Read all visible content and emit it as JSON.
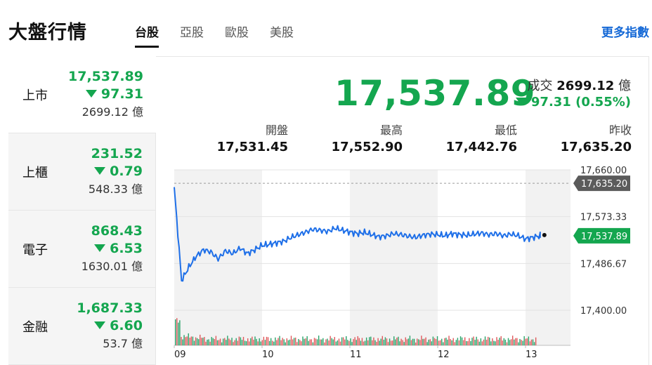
{
  "header": {
    "title": "大盤行情",
    "tabs": [
      {
        "label": "台股",
        "active": true
      },
      {
        "label": "亞股",
        "active": false
      },
      {
        "label": "歐股",
        "active": false
      },
      {
        "label": "美股",
        "active": false
      }
    ],
    "more_link": "更多指數"
  },
  "sidebar": {
    "items": [
      {
        "name": "上市",
        "value": "17,537.89",
        "change": "97.31",
        "volume": "2699.12 億",
        "active": true
      },
      {
        "name": "上櫃",
        "value": "231.52",
        "change": "0.79",
        "volume": "548.33 億",
        "active": false
      },
      {
        "name": "電子",
        "value": "868.43",
        "change": "6.53",
        "volume": "1630.01 億",
        "active": false
      },
      {
        "name": "金融",
        "value": "1,687.33",
        "change": "6.60",
        "volume": "53.7 億",
        "active": false
      }
    ]
  },
  "quote": {
    "price": "17,537.89",
    "turnover_label": "成交",
    "turnover_value": "2699.12",
    "turnover_unit": "億",
    "change": "97.31 (0.55%)",
    "direction": "down"
  },
  "stats": [
    {
      "label": "開盤",
      "value": "17,531.45"
    },
    {
      "label": "最高",
      "value": "17,552.90"
    },
    {
      "label": "最低",
      "value": "17,442.76"
    },
    {
      "label": "昨收",
      "value": "17,635.20"
    }
  ],
  "colors": {
    "down": "#14a64f",
    "line": "#1e6fe8",
    "prev_close_tag": "#5b5b5b",
    "link": "#1468d6",
    "session_shade": "#f2f2f2",
    "vol_up": "#e0585b",
    "vol_down": "#2aa36a"
  },
  "chart_data": {
    "type": "line",
    "x_ticks": [
      "09",
      "10",
      "11",
      "12",
      "13"
    ],
    "y_ticks": [
      "17,660.00",
      "17,573.33",
      "17,486.67",
      "17,400.00"
    ],
    "y_tick_values": [
      17660,
      17573.33,
      17486.67,
      17400
    ],
    "ylim": [
      17400,
      17660
    ],
    "prev_close": 17635.2,
    "prev_close_label": "17,635.20",
    "last_price": 17537.89,
    "last_label": "17,537.89",
    "series": [
      {
        "x": [
          "09:00",
          "09:05",
          "09:10",
          "09:15",
          "09:20",
          "09:25",
          "09:30",
          "09:35",
          "09:40",
          "09:45",
          "09:50",
          "09:55",
          "10:00",
          "10:05",
          "10:10",
          "10:15",
          "10:20",
          "10:25",
          "10:30",
          "10:35",
          "10:40",
          "10:45",
          "10:50",
          "10:55",
          "11:00",
          "11:05",
          "11:10",
          "11:15",
          "11:20",
          "11:25",
          "11:30",
          "11:35",
          "11:40",
          "11:45",
          "11:50",
          "11:55",
          "12:00",
          "12:05",
          "12:10",
          "12:15",
          "12:20",
          "12:25",
          "12:30",
          "12:35",
          "12:40",
          "12:45",
          "12:50",
          "12:55",
          "13:00",
          "13:05",
          "13:10"
        ],
        "values": [
          17628,
          17455,
          17480,
          17500,
          17512,
          17508,
          17495,
          17510,
          17505,
          17515,
          17505,
          17512,
          17520,
          17522,
          17525,
          17528,
          17535,
          17540,
          17545,
          17550,
          17548,
          17546,
          17552,
          17548,
          17545,
          17542,
          17544,
          17540,
          17536,
          17538,
          17542,
          17540,
          17537,
          17535,
          17539,
          17541,
          17540,
          17538,
          17542,
          17540,
          17539,
          17541,
          17543,
          17540,
          17542,
          17538,
          17541,
          17538,
          17532,
          17535,
          17538
        ]
      }
    ],
    "grid": true
  }
}
